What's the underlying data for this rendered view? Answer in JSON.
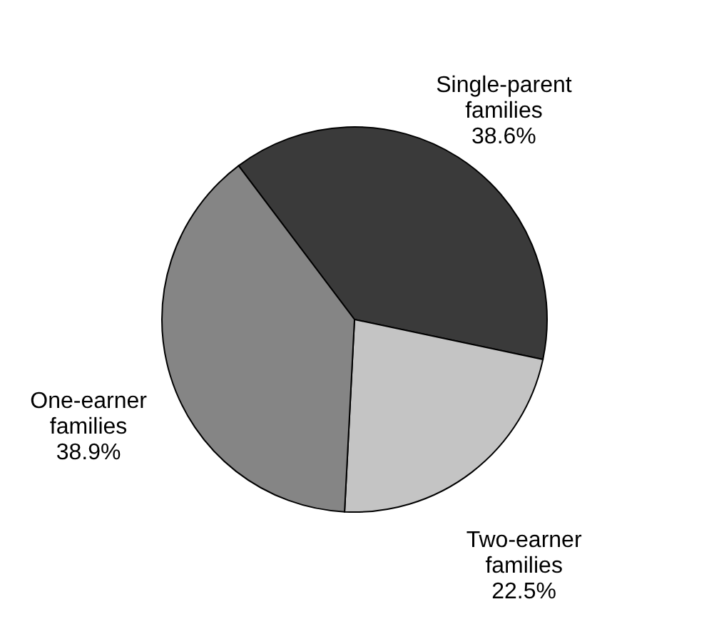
{
  "chart_data": {
    "type": "pie",
    "categories": [
      "Single-parent families",
      "Two-earner families",
      "One-earner families"
    ],
    "values": [
      38.6,
      22.5,
      38.9
    ],
    "colors": [
      "#3a3a3a",
      "#c4c4c4",
      "#858585"
    ],
    "value_labels": [
      "38.6%",
      "22.5%",
      "38.9%"
    ],
    "legend": false
  }
}
